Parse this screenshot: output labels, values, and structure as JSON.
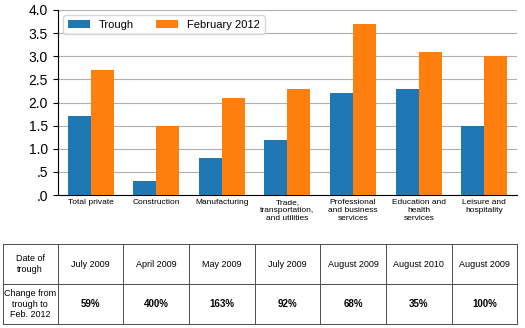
{
  "chart_data": {
    "type": "bar",
    "categories": [
      "Total private",
      "Construction",
      "Manufacturing",
      "Trade, transportation,\nand utilities",
      "Professional and\nbusiness services",
      "Education and health\nservices",
      "Leisure and\nhospitality"
    ],
    "series": [
      {
        "name": "Trough",
        "values": [
          1.7,
          0.3,
          0.8,
          1.2,
          2.2,
          2.3,
          1.5
        ]
      },
      {
        "name": "February 2012",
        "values": [
          2.7,
          1.5,
          2.1,
          2.3,
          3.7,
          3.1,
          3.0
        ]
      }
    ],
    "ylim": [
      0,
      4.0
    ],
    "yticks": [
      {
        "value": 0.0,
        "label": ".0"
      },
      {
        "value": 0.5,
        "label": ".5"
      },
      {
        "value": 1.0,
        "label": "1.0"
      },
      {
        "value": 1.5,
        "label": "1.5"
      },
      {
        "value": 2.0,
        "label": "2.0"
      },
      {
        "value": 2.5,
        "label": "2.5"
      },
      {
        "value": 3.0,
        "label": "3.0"
      },
      {
        "value": 3.5,
        "label": "3.5"
      },
      {
        "value": 4.0,
        "label": "4.0"
      }
    ],
    "grid": true,
    "legend": "upper left",
    "table": {
      "row_labels": [
        "Date of\ntrough",
        "Change from\ntrough to\nFeb. 2012"
      ],
      "rows": [
        [
          "July 2009",
          "April 2009",
          "May 2009",
          "July 2009",
          "August 2009",
          "August 2010",
          "August 2009"
        ],
        [
          "59%",
          "400%",
          "163%",
          "92%",
          "68%",
          "35%",
          "100%"
        ]
      ]
    }
  }
}
